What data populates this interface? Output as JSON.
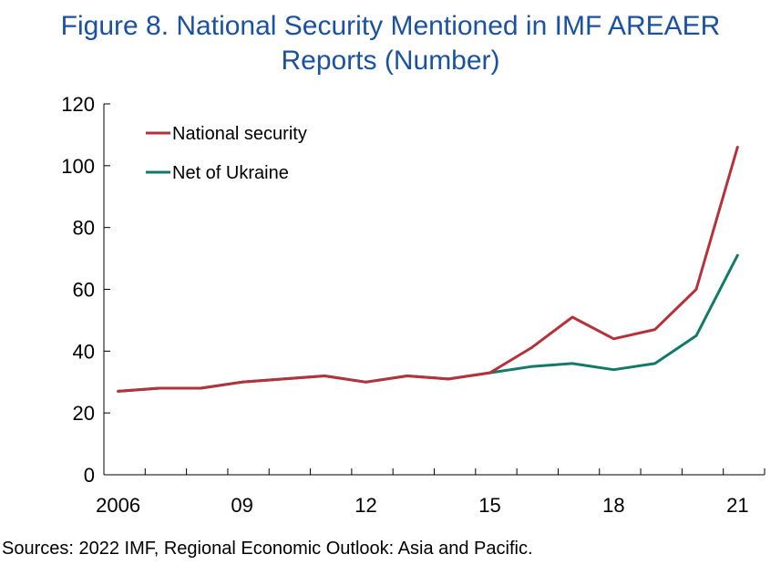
{
  "title_line1": "Figure 8. National Security Mentioned in IMF AREAER",
  "title_line2": "Reports (Number)",
  "source": "Sources: 2022 IMF, Regional Economic Outlook: Asia and Pacific.",
  "chart_data": {
    "type": "line",
    "title": "Figure 8. National Security Mentioned in IMF AREAER Reports (Number)",
    "xlabel": "",
    "ylabel": "",
    "x": [
      2006,
      2007,
      2008,
      2009,
      2010,
      2011,
      2012,
      2013,
      2014,
      2015,
      2016,
      2017,
      2018,
      2019,
      2020,
      2021
    ],
    "x_tick_values": [
      2006,
      2009,
      2012,
      2015,
      2018,
      2021
    ],
    "x_tick_labels": [
      "2006",
      "09",
      "12",
      "15",
      "18",
      "21"
    ],
    "ylim": [
      0,
      120
    ],
    "y_ticks": [
      0,
      20,
      40,
      60,
      80,
      100,
      120
    ],
    "grid": false,
    "legend_position": "top-left",
    "series": [
      {
        "name": "National security",
        "color": "#b5323a",
        "values": [
          27,
          28,
          28,
          30,
          31,
          32,
          30,
          32,
          31,
          33,
          41,
          51,
          44,
          47,
          60,
          106
        ]
      },
      {
        "name": "Net of Ukraine",
        "color": "#137a6a",
        "values": [
          27,
          28,
          28,
          30,
          31,
          32,
          30,
          32,
          31,
          33,
          35,
          36,
          34,
          36,
          45,
          71
        ]
      }
    ]
  }
}
